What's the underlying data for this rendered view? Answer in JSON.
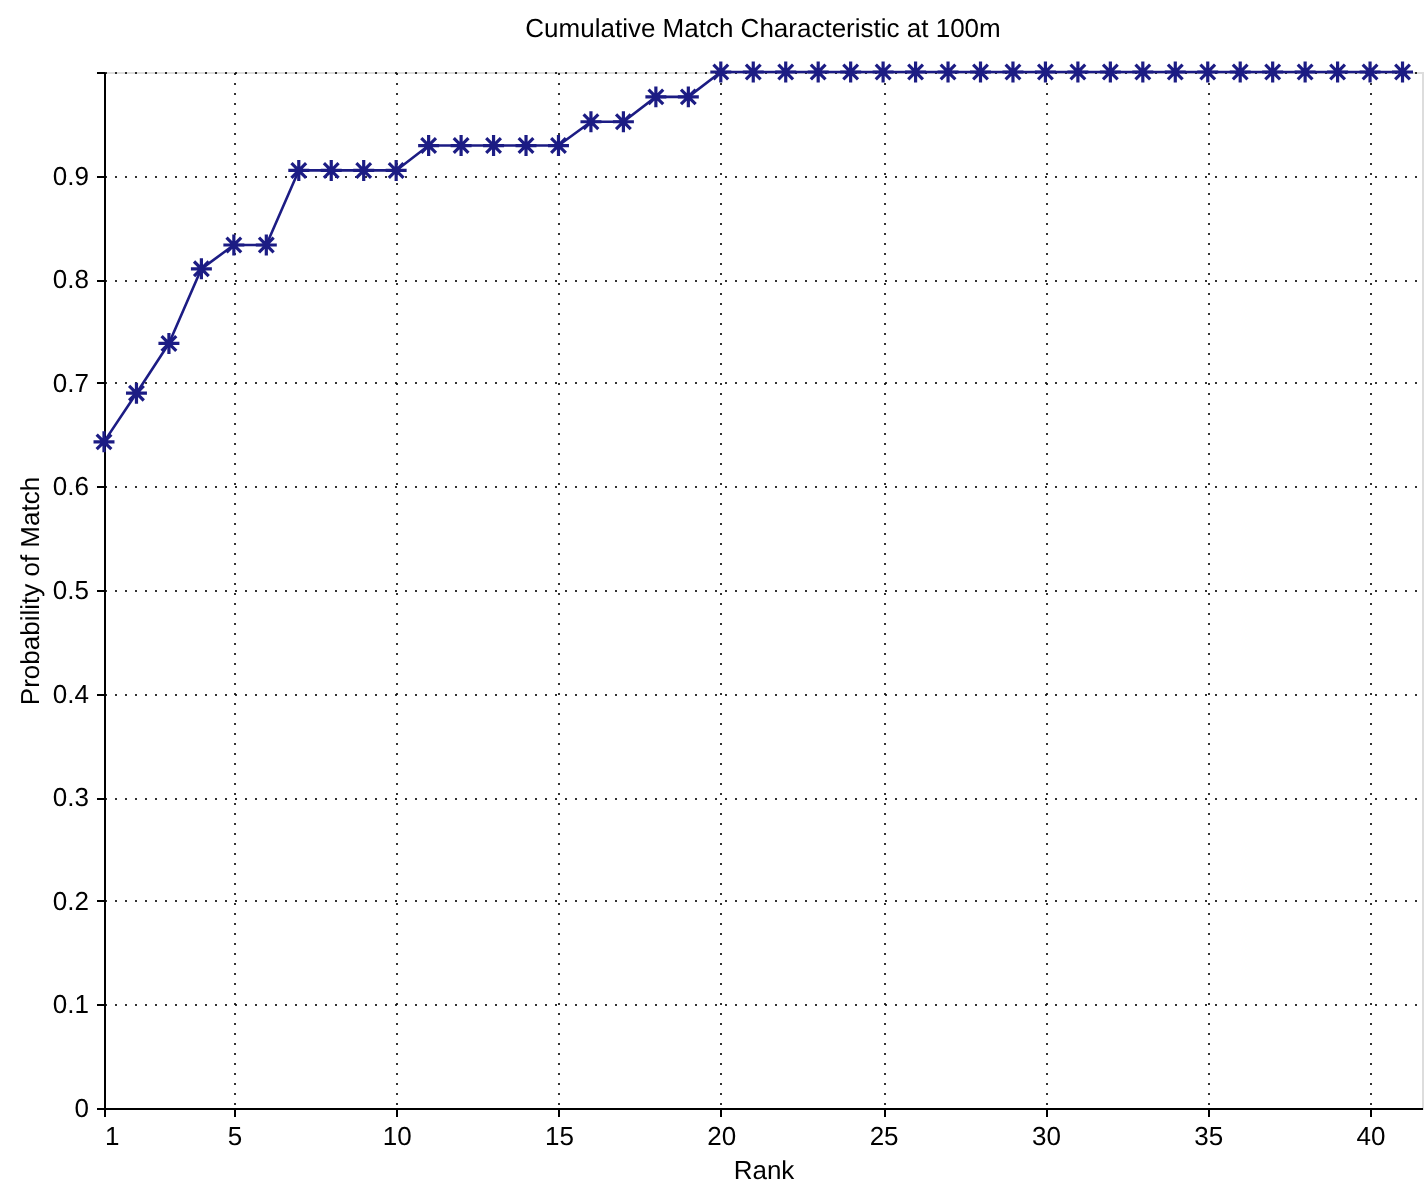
{
  "chart_data": {
    "type": "line",
    "title": "Cumulative Match Characteristic at 100m",
    "xlabel": "Rank",
    "ylabel": "Probability of Match",
    "x": [
      1,
      2,
      3,
      4,
      5,
      6,
      7,
      8,
      9,
      10,
      11,
      12,
      13,
      14,
      15,
      16,
      17,
      18,
      19,
      20,
      21,
      22,
      23,
      24,
      25,
      26,
      27,
      28,
      29,
      30,
      31,
      32,
      33,
      34,
      35,
      36,
      37,
      38,
      39,
      40,
      41
    ],
    "series": [
      {
        "color": "#1c1c84",
        "values": [
          0.643,
          0.69,
          0.738,
          0.81,
          0.833,
          0.833,
          0.905,
          0.905,
          0.905,
          0.905,
          0.929,
          0.929,
          0.929,
          0.929,
          0.929,
          0.952,
          0.952,
          0.976,
          0.976,
          1,
          1,
          1,
          1,
          1,
          1,
          1,
          1,
          1,
          1,
          1,
          1,
          1,
          1,
          1,
          1,
          1,
          1,
          1,
          1,
          1,
          1
        ]
      }
    ],
    "xlim": [
      1,
      41.6
    ],
    "xticks": [
      1,
      5,
      10,
      15,
      20,
      25,
      30,
      35,
      40
    ],
    "ylim": [
      0,
      1
    ],
    "yticks": [
      0,
      0.1,
      0.2,
      0.3,
      0.4,
      0.5,
      0.6,
      0.7,
      0.8,
      0.9,
      {
        "value": 1,
        "label": null
      }
    ],
    "grid": true,
    "marker": "cross",
    "line_style": "solid"
  }
}
